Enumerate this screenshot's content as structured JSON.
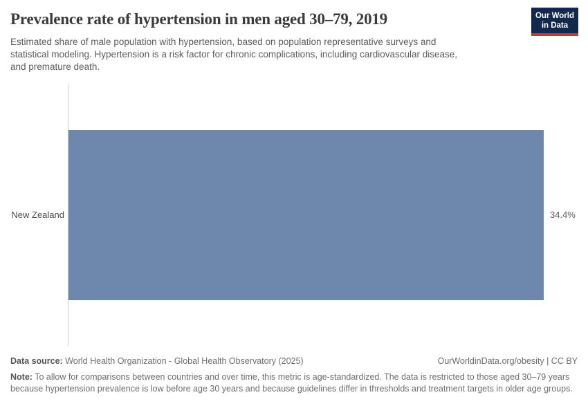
{
  "header": {
    "title": "Prevalence rate of hypertension in men aged 30–79, 2019",
    "subtitle_lines": [
      "Estimated share of male population with hypertension, based on population representative surveys and",
      "statistical modeling. Hypertension is a risk factor for chronic complications, including cardiovascular disease,",
      "and premature death."
    ],
    "logo": {
      "line1": "Our World",
      "line2": "in Data",
      "bg_color": "#12294d",
      "stripe_color": "#c5383c"
    }
  },
  "chart_data": {
    "type": "bar",
    "orientation": "horizontal",
    "title": "Prevalence rate of hypertension in men aged 30–79, 2019",
    "categories": [
      "New Zealand"
    ],
    "values": [
      34.4
    ],
    "value_labels": [
      "34.4%"
    ],
    "unit": "%",
    "xlim": [
      0,
      34.4
    ],
    "grid": false,
    "legend": false,
    "bar_color": "#6e87ad"
  },
  "footer": {
    "source_label": "Data source:",
    "source_text": "World Health Organization - Global Health Observatory (2025)",
    "license_text": "OurWorldinData.org/obesity | CC BY",
    "note_label": "Note:",
    "note_text": "To allow for comparisons between countries and over time, this metric is age-standardized. The data is restricted to those aged 30–79 years because hypertension prevalence is low before age 30 years and because guidelines differ in thresholds and treatment targets in older age groups."
  },
  "colors": {
    "title": "#3a3a3a",
    "subtitle": "#5b5b5b",
    "axis_line": "#cfcfcf",
    "entity_label": "#4a4a4a",
    "value_label": "#5c5c5c",
    "footer_text": "#6d6d6d"
  }
}
